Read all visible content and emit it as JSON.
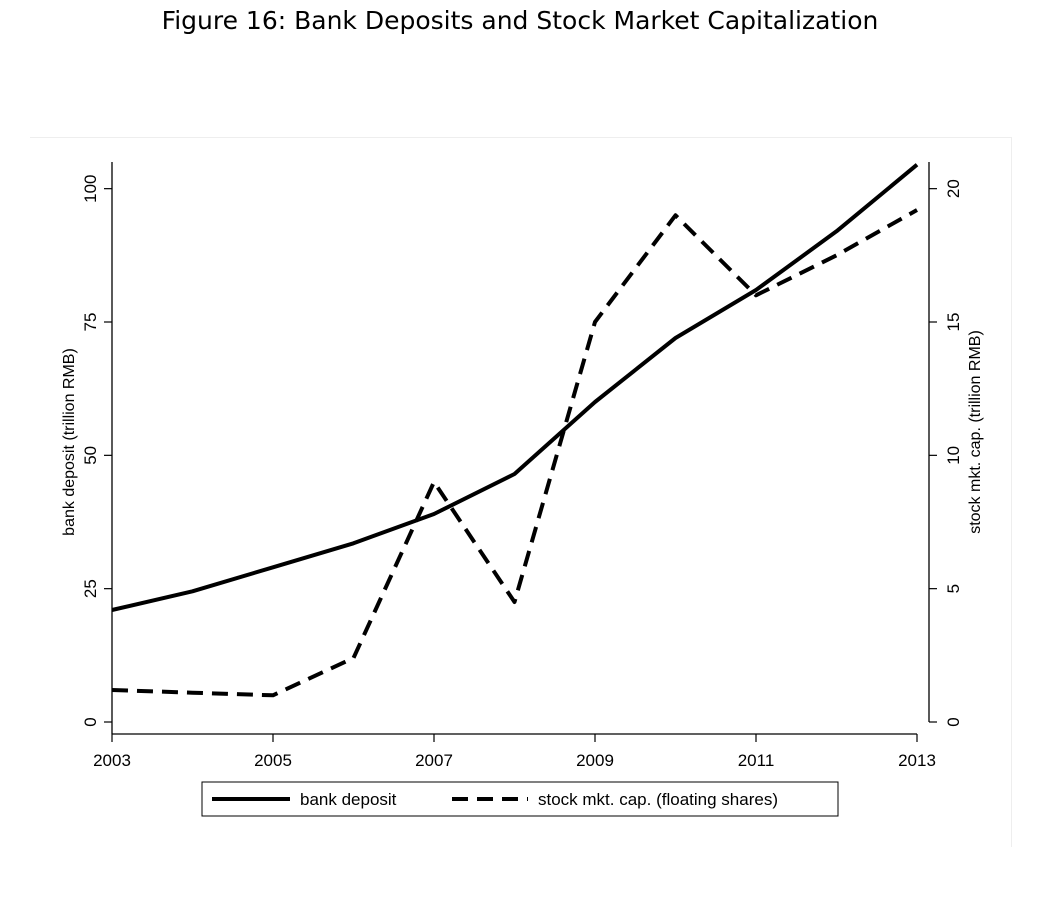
{
  "figure": {
    "title": "Figure 16: Bank Deposits and Stock Market Capitalization"
  },
  "chart_data": {
    "type": "line",
    "x": [
      2003,
      2004,
      2005,
      2006,
      2007,
      2008,
      2009,
      2010,
      2011,
      2012,
      2013
    ],
    "x_ticks": [
      "2003",
      "2005",
      "2007",
      "2009",
      "2011",
      "2013"
    ],
    "xlim": [
      2003,
      2013
    ],
    "ylabel_left": "bank deposit (trillion RMB)",
    "ylabel_right": "stock mkt. cap. (trillion RMB)",
    "y_left_ticks": [
      "0",
      "25",
      "50",
      "75",
      "100"
    ],
    "y_right_ticks": [
      "0",
      "5",
      "10",
      "15",
      "20"
    ],
    "ylim_left": [
      0,
      105
    ],
    "ylim_right": [
      0,
      21
    ],
    "grid": false,
    "legend_position": "bottom",
    "series": [
      {
        "name": "bank deposit",
        "axis": "left",
        "style": "solid",
        "color": "#000000",
        "values": [
          21,
          24.5,
          29,
          33.5,
          39,
          46.5,
          60,
          72,
          81,
          92,
          104.5
        ]
      },
      {
        "name": "stock mkt. cap. (floating shares)",
        "axis": "right",
        "style": "dashed",
        "color": "#000000",
        "values": [
          1.2,
          1.1,
          1.0,
          2.4,
          9.0,
          4.5,
          15.0,
          19.0,
          16.0,
          17.5,
          19.2
        ]
      }
    ]
  }
}
